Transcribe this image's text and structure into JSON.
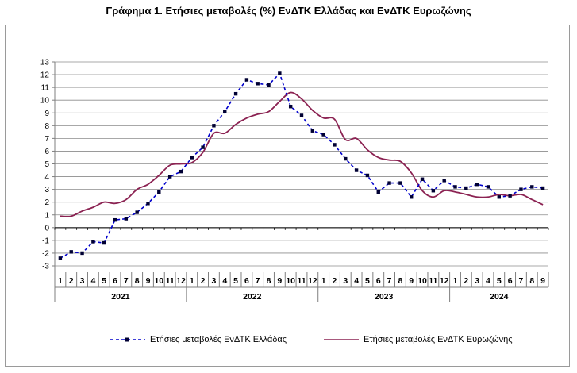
{
  "chart_data": {
    "type": "line",
    "title": "Γράφημα 1. Ετήσιες μεταβολές (%) ΕνΔΤΚ Ελλάδας και ΕνΔΤΚ Ευρωζώνης",
    "xlabel": "",
    "ylabel": "",
    "ylim": [
      -3,
      13
    ],
    "yticks": [
      "-3",
      "-2",
      "-1",
      "0",
      "1",
      "2",
      "3",
      "4",
      "5",
      "6",
      "7",
      "8",
      "9",
      "10",
      "11",
      "12",
      "13"
    ],
    "month_labels": [
      "1",
      "2",
      "3",
      "4",
      "5",
      "6",
      "7",
      "8",
      "9",
      "10",
      "11",
      "12",
      "1",
      "2",
      "3",
      "4",
      "5",
      "6",
      "7",
      "8",
      "9",
      "10",
      "11",
      "12",
      "1",
      "2",
      "3",
      "4",
      "5",
      "6",
      "7",
      "8",
      "9",
      "10",
      "11",
      "12",
      "1",
      "2",
      "3",
      "4",
      "5",
      "6",
      "7",
      "8",
      "9"
    ],
    "years": [
      {
        "label": "2021",
        "months": 12
      },
      {
        "label": "2022",
        "months": 12
      },
      {
        "label": "2023",
        "months": 12
      },
      {
        "label": "2024",
        "months": 9
      }
    ],
    "grid": true,
    "legend_position": "bottom",
    "series": [
      {
        "name": "Ετήσιες μεταβολές ΕνΔΤΚ Ελλάδας",
        "color": "#0000cc",
        "style": "dashed-markers",
        "values": [
          -2.4,
          -1.9,
          -2.0,
          -1.1,
          -1.2,
          0.6,
          0.7,
          1.2,
          1.9,
          2.8,
          4.0,
          4.4,
          5.5,
          6.3,
          8.0,
          9.1,
          10.5,
          11.6,
          11.3,
          11.2,
          12.1,
          9.5,
          8.8,
          7.6,
          7.3,
          6.5,
          5.4,
          4.5,
          4.1,
          2.8,
          3.5,
          3.5,
          2.4,
          3.8,
          2.9,
          3.7,
          3.2,
          3.1,
          3.4,
          3.2,
          2.4,
          2.5,
          3.0,
          3.2,
          3.1
        ]
      },
      {
        "name": "Ετήσιες μεταβολές ΕνΔΤΚ Ευρωζώνης",
        "color": "#8b2252",
        "style": "solid",
        "values": [
          0.9,
          0.9,
          1.3,
          1.6,
          2.0,
          1.9,
          2.2,
          3.0,
          3.4,
          4.1,
          4.9,
          5.0,
          5.1,
          5.9,
          7.4,
          7.4,
          8.1,
          8.6,
          8.9,
          9.1,
          9.9,
          10.6,
          10.1,
          9.2,
          8.6,
          8.5,
          6.9,
          7.0,
          6.1,
          5.5,
          5.3,
          5.2,
          4.3,
          2.9,
          2.4,
          2.9,
          2.8,
          2.6,
          2.4,
          2.4,
          2.6,
          2.5,
          2.6,
          2.2,
          1.8
        ]
      }
    ]
  }
}
